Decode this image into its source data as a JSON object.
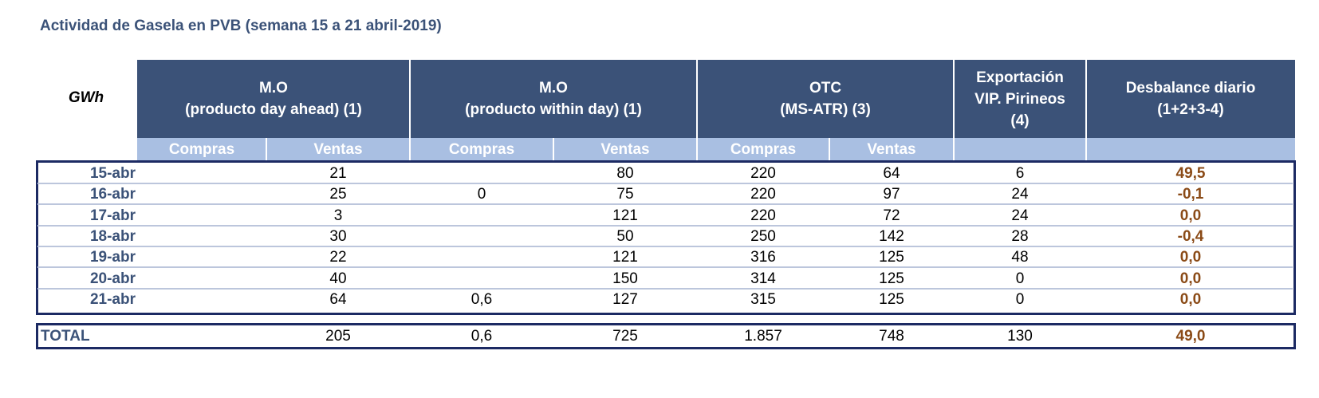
{
  "title": "Actividad de Gasela en PVB (semana 15 a 21 abril-2019)",
  "unit_label": "GWh",
  "headers": {
    "mo_da": {
      "line1": "M.O",
      "line2": "(producto day ahead) (1)"
    },
    "mo_wd": {
      "line1": "M.O",
      "line2": "(producto within day) (1)"
    },
    "otc": {
      "line1": "OTC",
      "line2": "(MS-ATR) (3)"
    },
    "export": {
      "line1": "Exportación",
      "line2": "VIP. Pirineos",
      "line3": "(4)"
    },
    "desb": {
      "line1": "Desbalance diario",
      "line2": "(1+2+3-4)"
    }
  },
  "subheaders": {
    "compras": "Compras",
    "ventas": "Ventas"
  },
  "rows": [
    {
      "date": "15-abr",
      "mo_da_compras": "",
      "mo_da_ventas": "21",
      "mo_wd_compras": "",
      "mo_wd_ventas": "80",
      "otc_compras": "220",
      "otc_ventas": "64",
      "export": "6",
      "desbalance": "49,5"
    },
    {
      "date": "16-abr",
      "mo_da_compras": "",
      "mo_da_ventas": "25",
      "mo_wd_compras": "0",
      "mo_wd_ventas": "75",
      "otc_compras": "220",
      "otc_ventas": "97",
      "export": "24",
      "desbalance": "-0,1"
    },
    {
      "date": "17-abr",
      "mo_da_compras": "",
      "mo_da_ventas": "3",
      "mo_wd_compras": "",
      "mo_wd_ventas": "121",
      "otc_compras": "220",
      "otc_ventas": "72",
      "export": "24",
      "desbalance": "0,0"
    },
    {
      "date": "18-abr",
      "mo_da_compras": "",
      "mo_da_ventas": "30",
      "mo_wd_compras": "",
      "mo_wd_ventas": "50",
      "otc_compras": "250",
      "otc_ventas": "142",
      "export": "28",
      "desbalance": "-0,4"
    },
    {
      "date": "19-abr",
      "mo_da_compras": "",
      "mo_da_ventas": "22",
      "mo_wd_compras": "",
      "mo_wd_ventas": "121",
      "otc_compras": "316",
      "otc_ventas": "125",
      "export": "48",
      "desbalance": "0,0"
    },
    {
      "date": "20-abr",
      "mo_da_compras": "",
      "mo_da_ventas": "40",
      "mo_wd_compras": "",
      "mo_wd_ventas": "150",
      "otc_compras": "314",
      "otc_ventas": "125",
      "export": "0",
      "desbalance": "0,0"
    },
    {
      "date": "21-abr",
      "mo_da_compras": "",
      "mo_da_ventas": "64",
      "mo_wd_compras": "0,6",
      "mo_wd_ventas": "127",
      "otc_compras": "315",
      "otc_ventas": "125",
      "export": "0",
      "desbalance": "0,0"
    }
  ],
  "total": {
    "label": "TOTAL",
    "mo_da_compras": "",
    "mo_da_ventas": "205",
    "mo_wd_compras": "0,6",
    "mo_wd_ventas": "725",
    "otc_compras": "1.857",
    "otc_ventas": "748",
    "export": "130",
    "desbalance": "49,0"
  },
  "colors": {
    "header_bg": "#3b5278",
    "subheader_bg": "#a9bfe2",
    "border": "#1c2a63",
    "imbalance_text": "#8a4a16"
  }
}
